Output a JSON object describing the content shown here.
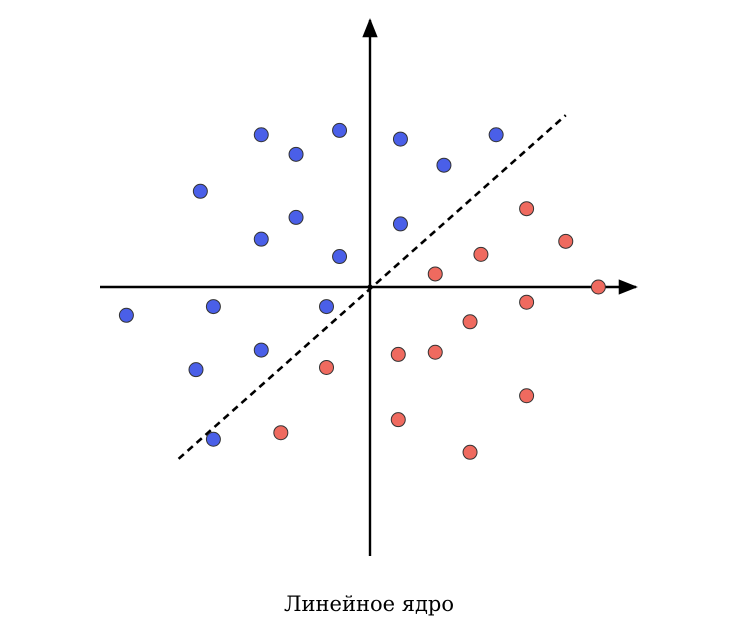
{
  "caption": "Линейное ядро",
  "colors": {
    "blue": "#4a5fe8",
    "red": "#ef6a5f",
    "axis": "#000000",
    "point_stroke": "#333333"
  },
  "classes": [
    {
      "name": "blue",
      "points": [
        [
          -2.5,
          3.5
        ],
        [
          -1.7,
          3.05
        ],
        [
          -0.7,
          3.6
        ],
        [
          0.7,
          3.4
        ],
        [
          1.7,
          2.8
        ],
        [
          2.9,
          3.5
        ],
        [
          -3.9,
          2.2
        ],
        [
          -1.7,
          1.6
        ],
        [
          -2.5,
          1.1
        ],
        [
          -0.7,
          0.7
        ],
        [
          0.7,
          1.45
        ],
        [
          -5.6,
          -0.65
        ],
        [
          -3.6,
          -0.45
        ],
        [
          -1.0,
          -0.45
        ],
        [
          -2.5,
          -1.45
        ],
        [
          -4.0,
          -1.9
        ],
        [
          -3.6,
          -3.5
        ]
      ]
    },
    {
      "name": "red",
      "points": [
        [
          3.6,
          1.8
        ],
        [
          4.5,
          1.05
        ],
        [
          2.55,
          0.75
        ],
        [
          1.5,
          0.3
        ],
        [
          5.25,
          0.0
        ],
        [
          3.6,
          -0.35
        ],
        [
          2.3,
          -0.8
        ],
        [
          0.65,
          -1.55
        ],
        [
          1.5,
          -1.5
        ],
        [
          -1.0,
          -1.85
        ],
        [
          3.6,
          -2.5
        ],
        [
          0.65,
          -3.05
        ],
        [
          -2.05,
          -3.35
        ],
        [
          2.3,
          -3.8
        ]
      ]
    }
  ],
  "separator": {
    "from": [
      -4.4,
      -3.95
    ],
    "to": [
      4.5,
      3.95
    ],
    "style": "dashed"
  }
}
